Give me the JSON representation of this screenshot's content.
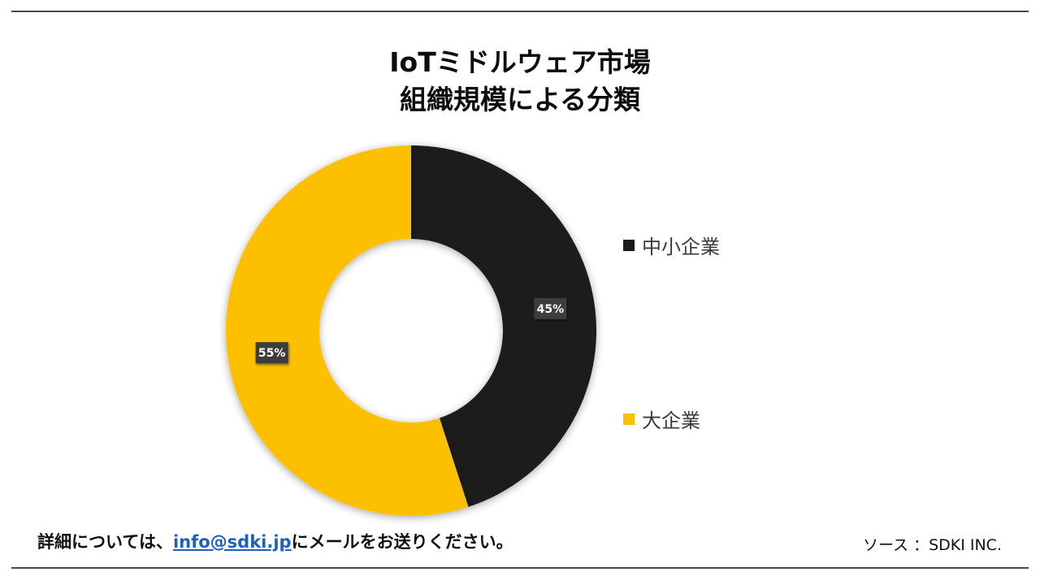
{
  "title": {
    "line1": "IoTミドルウェア市場",
    "line2": "組織規模による分類"
  },
  "chart_data": {
    "type": "pie",
    "variant": "donut",
    "title": "IoTミドルウェア市場 組織規模による分類",
    "categories": [
      "中小企業",
      "大企業"
    ],
    "values": [
      45,
      55
    ],
    "data_labels": [
      "45%",
      "55%"
    ],
    "colors": [
      "#1a1a1a",
      "#fcc000"
    ],
    "legend_position": "right"
  },
  "legend": {
    "items": [
      {
        "label": "中小企業",
        "color": "#1a1a1a"
      },
      {
        "label": "大企業",
        "color": "#fcc000"
      }
    ]
  },
  "footer": {
    "prefix": "詳細については、",
    "email": "info@sdki.jp",
    "suffix": "にメールをお送りください。"
  },
  "source": {
    "text": "ソース ：SDKI INC."
  }
}
